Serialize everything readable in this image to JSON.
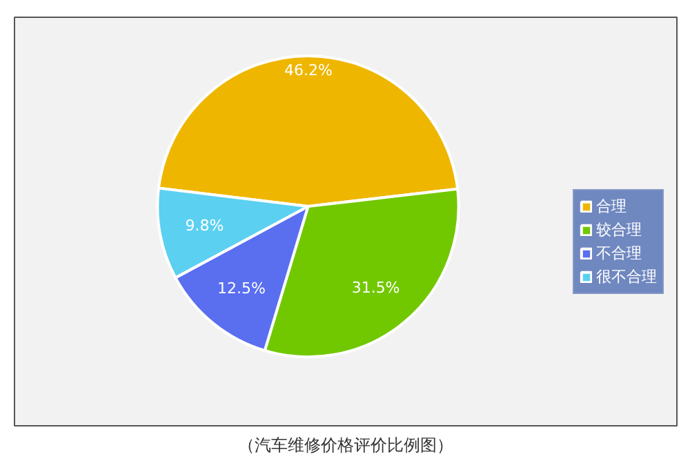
{
  "chart_data": {
    "type": "pie",
    "categories": [
      "合理",
      "较合理",
      "不合理",
      "很不合理"
    ],
    "values": [
      46.2,
      31.5,
      12.5,
      9.8
    ],
    "colors": [
      "#efb600",
      "#72c800",
      "#5a6ef0",
      "#5bd0f0"
    ],
    "value_labels": [
      "46.2%",
      "31.5%",
      "12.5%",
      "9.8%"
    ],
    "legend": "right",
    "annotations": [
      "（汽车维修价格评价比例图）"
    ]
  }
}
